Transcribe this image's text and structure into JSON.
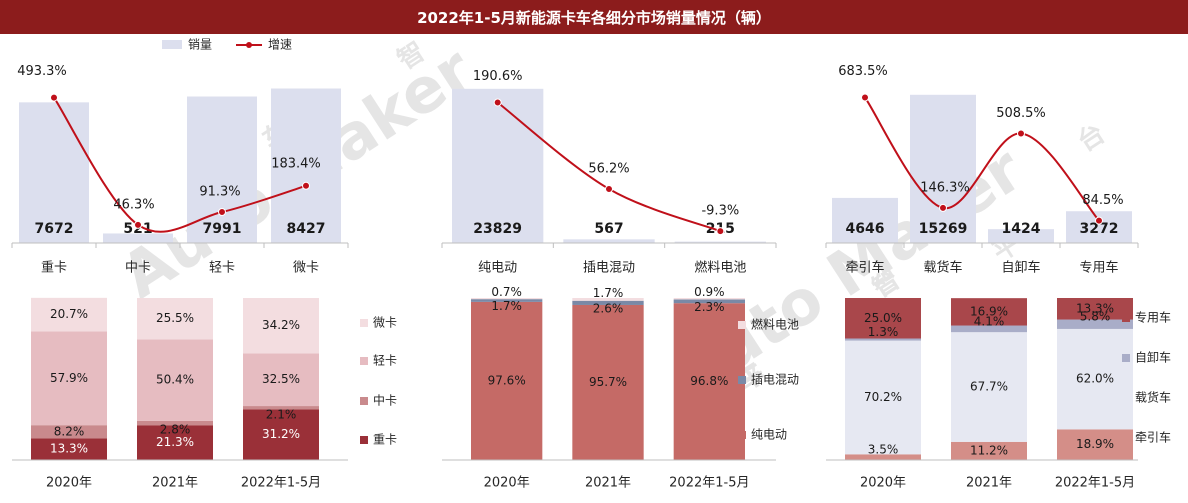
{
  "title": "2022年1-5月新能源卡车各细分市场销量情况（辆）",
  "legend": {
    "bar_label": "销量",
    "line_label": "增速"
  },
  "watermark": {
    "text": "Auto Maker",
    "chars": [
      "车",
      "智",
      "平",
      "台"
    ]
  },
  "colors": {
    "title_bg": "#8c1c1c",
    "bar": "#dcdfee",
    "line": "#c0101a",
    "axis": "#bfbfbf",
    "text": "#262626",
    "truck_micro": "#f3dde0",
    "truck_light": "#e6bcc1",
    "truck_medium": "#c98a8d",
    "truck_heavy": "#9a3038",
    "fuel_bev": "#c56a66",
    "fuel_phev": "#7a89a6",
    "fuel_fcv": "#f3dde0",
    "use_tractor": "#d48e88",
    "use_cargo": "#e6e8f2",
    "use_dump": "#a9adc8",
    "use_special": "#a9474b"
  },
  "chart_data": [
    {
      "type": "bar",
      "name": "按吨位",
      "categories": [
        "重卡",
        "中卡",
        "轻卡",
        "微卡"
      ],
      "series": [
        {
          "name": "销量",
          "values": [
            7672,
            521,
            7991,
            8427
          ]
        },
        {
          "name": "增速",
          "kind": "line",
          "values": [
            493.3,
            46.3,
            91.3,
            183.4
          ]
        }
      ],
      "value_labels": [
        "7672",
        "521",
        "7991",
        "8427"
      ],
      "growth_labels": [
        "493.3%",
        "46.3%",
        "91.3%",
        "183.4%"
      ]
    },
    {
      "type": "bar",
      "name": "按燃料",
      "categories": [
        "纯电动",
        "插电混动",
        "燃料电池"
      ],
      "series": [
        {
          "name": "销量",
          "values": [
            23829,
            567,
            215
          ]
        },
        {
          "name": "增速",
          "kind": "line",
          "values": [
            190.6,
            56.2,
            -9.3
          ]
        }
      ],
      "value_labels": [
        "23829",
        "567",
        "215"
      ],
      "growth_labels": [
        "190.6%",
        "56.2%",
        "-9.3%"
      ]
    },
    {
      "type": "bar",
      "name": "按用途",
      "categories": [
        "牵引车",
        "载货车",
        "自卸车",
        "专用车"
      ],
      "series": [
        {
          "name": "销量",
          "values": [
            4646,
            15269,
            1424,
            3272
          ]
        },
        {
          "name": "增速",
          "kind": "line",
          "values": [
            683.5,
            146.3,
            508.5,
            84.5
          ]
        }
      ],
      "value_labels": [
        "4646",
        "15269",
        "1424",
        "3272"
      ],
      "growth_labels": [
        "683.5%",
        "146.3%",
        "508.5%",
        "84.5%"
      ]
    },
    {
      "type": "bar",
      "stacked": "percent",
      "categories": [
        "2020年",
        "2021年",
        "2022年1-5月"
      ],
      "series": [
        {
          "name": "重卡",
          "values": [
            13.3,
            21.3,
            31.2
          ],
          "labels": [
            "13.3%",
            "21.3%",
            "31.2%"
          ]
        },
        {
          "name": "中卡",
          "values": [
            8.2,
            2.8,
            2.1
          ],
          "labels": [
            "8.2%",
            "2.8%",
            "2.1%"
          ]
        },
        {
          "name": "轻卡",
          "values": [
            57.9,
            50.4,
            32.5
          ],
          "labels": [
            "57.9%",
            "50.4%",
            "32.5%"
          ]
        },
        {
          "name": "微卡",
          "values": [
            20.7,
            25.5,
            34.2
          ],
          "labels": [
            "20.7%",
            "25.5%",
            "34.2%"
          ]
        }
      ],
      "legend_order": [
        "微卡",
        "轻卡",
        "中卡",
        "重卡"
      ]
    },
    {
      "type": "bar",
      "stacked": "percent",
      "categories": [
        "2020年",
        "2021年",
        "2022年1-5月"
      ],
      "series": [
        {
          "name": "纯电动",
          "values": [
            97.6,
            95.7,
            96.8
          ],
          "labels": [
            "97.6%",
            "95.7%",
            "96.8%"
          ]
        },
        {
          "name": "插电混动",
          "values": [
            1.7,
            2.6,
            2.3
          ],
          "labels": [
            "1.7%",
            "2.6%",
            "2.3%"
          ]
        },
        {
          "name": "燃料电池",
          "values": [
            0.7,
            1.7,
            0.9
          ],
          "labels": [
            "0.7%",
            "1.7%",
            "0.9%"
          ]
        }
      ],
      "legend_order": [
        "燃料电池",
        "插电混动",
        "纯电动"
      ]
    },
    {
      "type": "bar",
      "stacked": "percent",
      "categories": [
        "2020年",
        "2021年",
        "2022年1-5月"
      ],
      "series": [
        {
          "name": "牵引车",
          "values": [
            3.5,
            11.2,
            18.9
          ],
          "labels": [
            "3.5%",
            "11.2%",
            "18.9%"
          ]
        },
        {
          "name": "载货车",
          "values": [
            70.2,
            67.7,
            62.0
          ],
          "labels": [
            "70.2%",
            "67.7%",
            "62.0%"
          ]
        },
        {
          "name": "自卸车",
          "values": [
            1.3,
            4.1,
            5.8
          ],
          "labels": [
            "1.3%",
            "4.1%",
            "5.8%"
          ]
        },
        {
          "name": "专用车",
          "values": [
            25.0,
            16.9,
            13.3
          ],
          "labels": [
            "25.0%",
            "16.9%",
            "13.3%"
          ]
        }
      ],
      "legend_order": [
        "专用车",
        "自卸车",
        "载货车",
        "牵引车"
      ]
    }
  ]
}
